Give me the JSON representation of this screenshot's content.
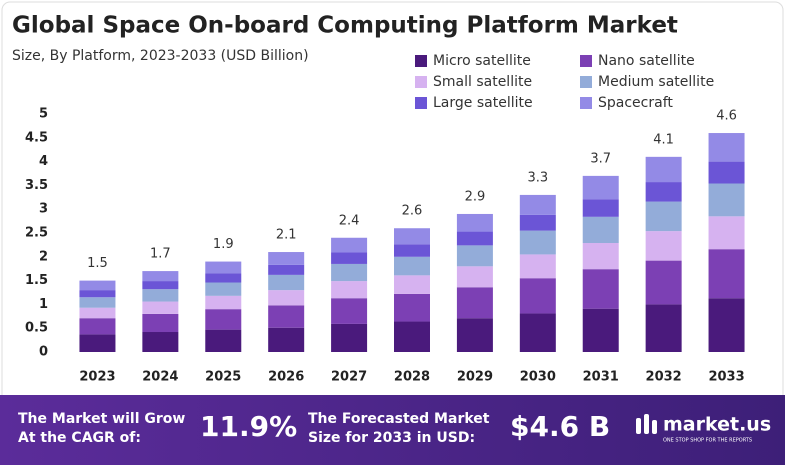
{
  "chart_data": {
    "type": "stacked-bar",
    "title": "Global Space On-board Computing Platform Market",
    "subtitle": "Size, By Platform, 2023-2033 (USD Billion)",
    "categories": [
      "2023",
      "2024",
      "2025",
      "2026",
      "2027",
      "2028",
      "2029",
      "2030",
      "2031",
      "2032",
      "2033"
    ],
    "series": [
      {
        "name": "Micro satellite",
        "color": "#4a1a7c",
        "values": [
          0.37,
          0.42,
          0.47,
          0.51,
          0.59,
          0.64,
          0.71,
          0.81,
          0.91,
          1.0,
          1.13
        ]
      },
      {
        "name": "Nano satellite",
        "color": "#7c40b4",
        "values": [
          0.34,
          0.38,
          0.43,
          0.47,
          0.54,
          0.58,
          0.65,
          0.74,
          0.83,
          0.92,
          1.03
        ]
      },
      {
        "name": "Small satellite",
        "color": "#d6b2f0",
        "values": [
          0.22,
          0.26,
          0.28,
          0.32,
          0.36,
          0.39,
          0.44,
          0.5,
          0.55,
          0.62,
          0.69
        ]
      },
      {
        "name": "Medium satellite",
        "color": "#93acd9",
        "values": [
          0.22,
          0.26,
          0.28,
          0.32,
          0.36,
          0.39,
          0.44,
          0.5,
          0.55,
          0.62,
          0.69
        ]
      },
      {
        "name": "Large satellite",
        "color": "#6b55d6",
        "values": [
          0.15,
          0.17,
          0.19,
          0.21,
          0.24,
          0.26,
          0.29,
          0.33,
          0.37,
          0.41,
          0.46
        ]
      },
      {
        "name": "Spacecraft",
        "color": "#938ae6",
        "values": [
          0.2,
          0.21,
          0.25,
          0.27,
          0.31,
          0.34,
          0.37,
          0.42,
          0.49,
          0.53,
          0.6
        ]
      }
    ],
    "totals": [
      1.5,
      1.7,
      1.9,
      2.1,
      2.4,
      2.6,
      2.9,
      3.3,
      3.7,
      4.1,
      4.6
    ],
    "ylim": [
      0,
      5
    ],
    "yticks": [
      0,
      0.5,
      1,
      1.5,
      2,
      2.5,
      3,
      3.5,
      4,
      4.5,
      5
    ],
    "grid": false
  },
  "footer": {
    "cagr_text": [
      "The Market will Grow",
      "At the CAGR of:"
    ],
    "cagr_value": "11.9%",
    "forecast_text": [
      "The Forecasted Market",
      "Size for 2033 in USD:"
    ],
    "forecast_value": "$4.6 B",
    "brand": "market.us",
    "tagline": "ONE STOP SHOP FOR THE REPORTS"
  }
}
